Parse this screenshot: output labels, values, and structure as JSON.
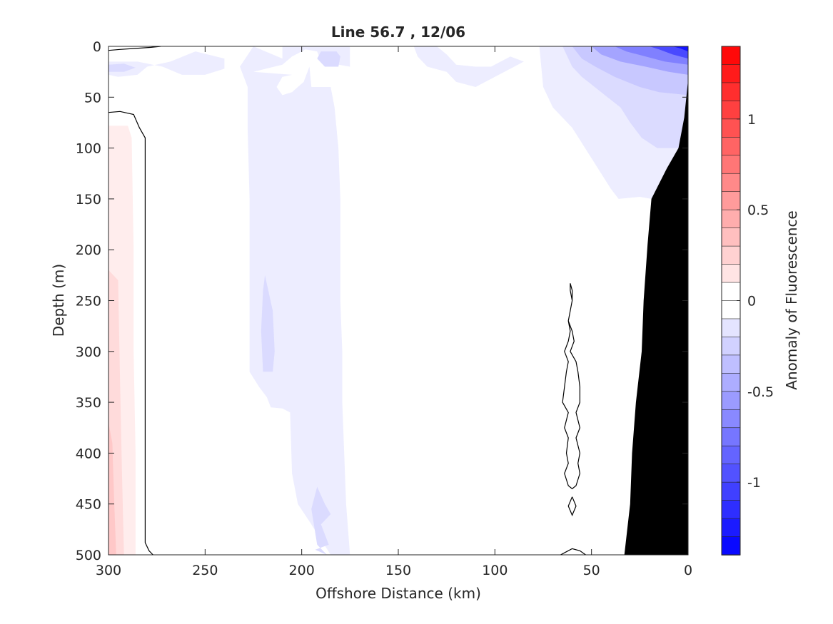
{
  "chart_data": {
    "type": "heatmap",
    "title": "Line 56.7 , 12/06",
    "xlabel": "Offshore Distance (km)",
    "ylabel": "Depth (m)",
    "xlim": [
      300,
      0
    ],
    "ylim": [
      0,
      500
    ],
    "x_reversed": true,
    "y_reversed": true,
    "xticks": [
      300,
      250,
      200,
      150,
      100,
      50,
      0
    ],
    "xtick_labels": [
      "300",
      "250",
      "200",
      "150",
      "100",
      "50",
      "0"
    ],
    "yticks": [
      0,
      50,
      100,
      150,
      200,
      250,
      300,
      350,
      400,
      450,
      500
    ],
    "ytick_labels": [
      "0",
      "50",
      "100",
      "150",
      "200",
      "250",
      "300",
      "350",
      "400",
      "450",
      "500"
    ],
    "colorbar": {
      "label": "Anomaly of Fluorescence",
      "range": [
        -1.4,
        1.4
      ],
      "step": 0.1,
      "ticks": [
        1,
        0.5,
        0,
        -0.5,
        -1
      ],
      "tick_labels": [
        "1",
        "0.5",
        "0",
        "-0.5",
        "-1"
      ],
      "colormap": "blue-white-red",
      "negative_color": "#0000ff",
      "positive_color": "#ff0000",
      "zero_color": "#ffffff"
    },
    "topography_color": "#000000",
    "bottom_topography": [
      [
        33,
        500
      ],
      [
        30,
        450
      ],
      [
        29,
        400
      ],
      [
        27,
        350
      ],
      [
        24,
        300
      ],
      [
        23,
        250
      ],
      [
        21,
        195
      ],
      [
        19,
        150
      ],
      [
        11,
        120
      ],
      [
        5,
        100
      ],
      [
        2,
        70
      ],
      [
        0,
        33
      ]
    ],
    "regions": [
      {
        "sign": "negative",
        "level": -0.1,
        "polygon": [
          [
            300,
            15
          ],
          [
            285,
            15
          ],
          [
            272,
            20
          ],
          [
            262,
            28
          ],
          [
            250,
            28
          ],
          [
            240,
            22
          ],
          [
            240,
            12
          ],
          [
            255,
            5
          ],
          [
            268,
            15
          ],
          [
            280,
            20
          ],
          [
            285,
            28
          ],
          [
            295,
            30
          ],
          [
            300,
            28
          ]
        ]
      },
      {
        "sign": "negative",
        "level": -0.2,
        "polygon": [
          [
            300,
            18
          ],
          [
            292,
            17
          ],
          [
            286,
            21
          ],
          [
            292,
            25
          ],
          [
            300,
            25
          ]
        ]
      },
      {
        "sign": "negative",
        "level": -0.1,
        "polygon": [
          [
            225,
            25
          ],
          [
            210,
            18
          ],
          [
            205,
            10
          ],
          [
            198,
            3
          ],
          [
            192,
            5
          ],
          [
            190,
            15
          ],
          [
            175,
            20
          ],
          [
            175,
            0
          ],
          [
            210,
            0
          ],
          [
            210,
            12
          ],
          [
            225,
            0
          ],
          [
            232,
            20
          ],
          [
            228,
            40
          ],
          [
            228,
            80
          ],
          [
            227,
            150
          ],
          [
            227,
            250
          ],
          [
            227,
            320
          ],
          [
            222,
            335
          ],
          [
            218,
            345
          ],
          [
            216,
            355
          ],
          [
            210,
            356
          ],
          [
            206,
            360
          ],
          [
            205,
            420
          ],
          [
            202,
            450
          ],
          [
            195,
            470
          ],
          [
            190,
            485
          ],
          [
            185,
            500
          ],
          [
            175,
            500
          ],
          [
            177,
            450
          ],
          [
            178,
            400
          ],
          [
            179,
            350
          ],
          [
            179,
            300
          ],
          [
            180,
            250
          ],
          [
            180,
            200
          ],
          [
            180,
            150
          ],
          [
            181,
            100
          ],
          [
            183,
            60
          ],
          [
            185,
            40
          ],
          [
            195,
            40
          ],
          [
            196,
            20
          ],
          [
            199,
            35
          ],
          [
            205,
            45
          ],
          [
            210,
            48
          ],
          [
            213,
            40
          ],
          [
            210,
            30
          ],
          [
            205,
            28
          ]
        ]
      },
      {
        "sign": "negative",
        "level": -0.2,
        "polygon": [
          [
            190,
            5
          ],
          [
            182,
            5
          ],
          [
            180,
            10
          ],
          [
            181,
            20
          ],
          [
            188,
            20
          ],
          [
            192,
            12
          ]
        ]
      },
      {
        "sign": "negative",
        "level": -0.2,
        "polygon": [
          [
            219,
            225
          ],
          [
            215,
            260
          ],
          [
            214,
            300
          ],
          [
            215,
            320
          ],
          [
            220,
            320
          ],
          [
            221,
            280
          ],
          [
            220,
            240
          ]
        ]
      },
      {
        "sign": "negative",
        "level": -0.2,
        "polygon": [
          [
            192,
            433
          ],
          [
            188,
            450
          ],
          [
            185,
            460
          ],
          [
            190,
            470
          ],
          [
            186,
            490
          ],
          [
            193,
            495
          ],
          [
            187,
            500
          ],
          [
            192,
            490
          ],
          [
            195,
            455
          ]
        ]
      },
      {
        "sign": "negative",
        "level": -0.1,
        "polygon": [
          [
            130,
            0
          ],
          [
            125,
            8
          ],
          [
            120,
            18
          ],
          [
            110,
            20
          ],
          [
            102,
            20
          ],
          [
            92,
            10
          ],
          [
            85,
            15
          ],
          [
            100,
            30
          ],
          [
            110,
            40
          ],
          [
            120,
            35
          ],
          [
            125,
            25
          ],
          [
            135,
            20
          ],
          [
            140,
            10
          ],
          [
            142,
            0
          ]
        ]
      },
      {
        "sign": "negative",
        "level": -0.1,
        "polygon": [
          [
            77,
            0
          ],
          [
            75,
            40
          ],
          [
            70,
            60
          ],
          [
            60,
            80
          ],
          [
            50,
            110
          ],
          [
            40,
            140
          ],
          [
            36,
            150
          ],
          [
            25,
            148
          ],
          [
            19,
            150
          ],
          [
            11,
            120
          ],
          [
            5,
            100
          ],
          [
            2,
            70
          ],
          [
            0,
            33
          ],
          [
            0,
            0
          ]
        ]
      },
      {
        "sign": "negative",
        "level": -0.2,
        "polygon": [
          [
            65,
            0
          ],
          [
            60,
            20
          ],
          [
            55,
            30
          ],
          [
            45,
            45
          ],
          [
            35,
            60
          ],
          [
            30,
            75
          ],
          [
            24,
            90
          ],
          [
            16,
            100
          ],
          [
            5,
            100
          ],
          [
            2,
            70
          ],
          [
            0,
            40
          ],
          [
            0,
            0
          ]
        ]
      },
      {
        "sign": "negative",
        "level": -0.3,
        "polygon": [
          [
            60,
            0
          ],
          [
            55,
            12
          ],
          [
            48,
            20
          ],
          [
            38,
            30
          ],
          [
            25,
            40
          ],
          [
            15,
            45
          ],
          [
            0,
            48
          ],
          [
            0,
            0
          ]
        ]
      },
      {
        "sign": "negative",
        "level": -0.5,
        "polygon": [
          [
            50,
            0
          ],
          [
            45,
            8
          ],
          [
            35,
            15
          ],
          [
            22,
            20
          ],
          [
            10,
            25
          ],
          [
            0,
            28
          ],
          [
            0,
            0
          ]
        ]
      },
      {
        "sign": "negative",
        "level": -0.7,
        "polygon": [
          [
            38,
            0
          ],
          [
            32,
            5
          ],
          [
            22,
            10
          ],
          [
            12,
            15
          ],
          [
            0,
            18
          ],
          [
            0,
            0
          ]
        ]
      },
      {
        "sign": "negative",
        "level": -1.0,
        "polygon": [
          [
            20,
            0
          ],
          [
            15,
            3
          ],
          [
            8,
            8
          ],
          [
            0,
            12
          ],
          [
            0,
            0
          ]
        ]
      },
      {
        "sign": "negative",
        "level": -1.3,
        "polygon": [
          [
            8,
            0
          ],
          [
            4,
            2
          ],
          [
            0,
            5
          ],
          [
            0,
            0
          ]
        ]
      },
      {
        "sign": "positive",
        "level": 0.1,
        "polygon": [
          [
            300,
            78
          ],
          [
            290,
            78
          ],
          [
            288,
            90
          ],
          [
            287,
            200
          ],
          [
            287,
            300
          ],
          [
            286,
            400
          ],
          [
            286,
            500
          ],
          [
            300,
            500
          ]
        ]
      },
      {
        "sign": "positive",
        "level": 0.2,
        "polygon": [
          [
            300,
            220
          ],
          [
            295,
            230
          ],
          [
            294,
            330
          ],
          [
            293,
            420
          ],
          [
            292,
            500
          ],
          [
            300,
            500
          ]
        ]
      },
      {
        "sign": "positive",
        "level": 0.3,
        "polygon": [
          [
            300,
            370
          ],
          [
            298,
            390
          ],
          [
            297,
            450
          ],
          [
            296,
            500
          ],
          [
            300,
            500
          ]
        ]
      }
    ],
    "zero_contours": [
      [
        [
          300,
          4
        ],
        [
          294,
          3
        ],
        [
          286,
          2
        ],
        [
          278,
          1
        ],
        [
          273,
          0
        ]
      ],
      [
        [
          300,
          65
        ],
        [
          294,
          64
        ],
        [
          287,
          67
        ],
        [
          284,
          80
        ],
        [
          281,
          90
        ],
        [
          281,
          200
        ],
        [
          281,
          300
        ],
        [
          281,
          400
        ],
        [
          281,
          488
        ],
        [
          279,
          496
        ],
        [
          277,
          500
        ]
      ],
      [
        [
          61,
          233
        ],
        [
          60,
          240
        ],
        [
          60,
          250
        ],
        [
          61,
          260
        ],
        [
          62,
          270
        ],
        [
          60,
          280
        ],
        [
          59,
          290
        ],
        [
          61,
          300
        ],
        [
          58,
          310
        ],
        [
          57,
          320
        ],
        [
          56,
          335
        ],
        [
          56,
          350
        ],
        [
          58,
          360
        ],
        [
          56,
          375
        ],
        [
          58,
          385
        ],
        [
          56,
          400
        ],
        [
          57,
          410
        ],
        [
          56,
          420
        ],
        [
          58,
          432
        ],
        [
          60,
          435
        ],
        [
          62,
          432
        ],
        [
          64,
          420
        ],
        [
          62,
          410
        ],
        [
          63,
          400
        ],
        [
          62,
          385
        ],
        [
          64,
          375
        ],
        [
          62,
          360
        ],
        [
          65,
          350
        ],
        [
          64,
          335
        ],
        [
          63,
          320
        ],
        [
          62,
          310
        ],
        [
          64,
          300
        ],
        [
          62,
          290
        ],
        [
          61,
          280
        ],
        [
          62,
          270
        ],
        [
          61,
          260
        ],
        [
          60,
          250
        ],
        [
          61,
          240
        ],
        [
          61,
          233
        ]
      ],
      [
        [
          60,
          443
        ],
        [
          58,
          452
        ],
        [
          60,
          461
        ],
        [
          62,
          452
        ],
        [
          60,
          443
        ]
      ],
      [
        [
          66,
          500
        ],
        [
          63,
          497
        ],
        [
          60,
          494
        ],
        [
          56,
          496
        ],
        [
          53,
          500
        ]
      ]
    ]
  }
}
